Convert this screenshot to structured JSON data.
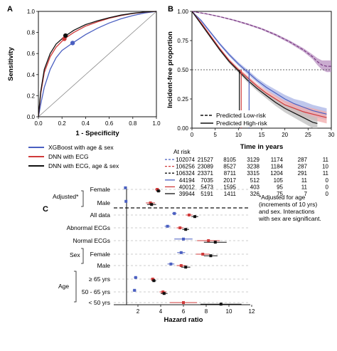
{
  "panels": {
    "a": "A",
    "b": "B",
    "c": "C"
  },
  "colors": {
    "xgb": "#4a5fc1",
    "dnn": "#d03a3a",
    "dnn_full": "#111111",
    "lowrisk": "#7a3b84",
    "lowrisk_band": "#b890c0",
    "blue_band": "#a9b4e6",
    "red_band": "#f2a9a9",
    "grey_band": "#bdbdbd"
  },
  "chart_data": [
    {
      "type": "line",
      "panel": "A",
      "xlabel": "1 - Specificity",
      "ylabel": "Sensitivity",
      "xlim": [
        0,
        1
      ],
      "ylim": [
        0,
        1
      ],
      "xticks": [
        "0.0",
        "0.2",
        "0.4",
        "0.6",
        "0.8",
        "1.0"
      ],
      "yticks": [
        "0.0",
        "0.2",
        "0.4",
        "0.6",
        "0.8",
        "1.0"
      ],
      "series": [
        {
          "name": "XGBoost with age & sex",
          "color_key": "xgb",
          "x": [
            0,
            0.02,
            0.05,
            0.1,
            0.15,
            0.2,
            0.29,
            0.4,
            0.5,
            0.6,
            0.7,
            0.8,
            0.9,
            1.0
          ],
          "y": [
            0,
            0.12,
            0.28,
            0.45,
            0.56,
            0.63,
            0.7,
            0.78,
            0.84,
            0.89,
            0.93,
            0.96,
            0.985,
            1.0
          ],
          "point": [
            0.29,
            0.7
          ]
        },
        {
          "name": "DNN with ECG",
          "color_key": "dnn",
          "x": [
            0,
            0.02,
            0.05,
            0.1,
            0.15,
            0.22,
            0.3,
            0.4,
            0.5,
            0.6,
            0.7,
            0.8,
            0.9,
            1.0
          ],
          "y": [
            0,
            0.22,
            0.42,
            0.57,
            0.66,
            0.74,
            0.8,
            0.86,
            0.9,
            0.935,
            0.96,
            0.98,
            0.993,
            1.0
          ],
          "point": [
            0.22,
            0.74
          ]
        },
        {
          "name": "DNN with ECG, age & sex",
          "color_key": "dnn_full",
          "x": [
            0,
            0.02,
            0.05,
            0.1,
            0.15,
            0.22,
            0.3,
            0.4,
            0.5,
            0.6,
            0.7,
            0.8,
            0.9,
            1.0
          ],
          "y": [
            0,
            0.24,
            0.45,
            0.6,
            0.69,
            0.76,
            0.82,
            0.875,
            0.91,
            0.94,
            0.965,
            0.982,
            0.994,
            1.0
          ],
          "point": [
            0.23,
            0.77
          ]
        }
      ],
      "reference_line": true
    },
    {
      "type": "line",
      "panel": "B",
      "xlabel": "Time in years",
      "ylabel": "Incident-free proportion",
      "xlim": [
        0,
        30
      ],
      "ylim": [
        0,
        1
      ],
      "xticks": [
        "0",
        "5",
        "10",
        "15",
        "20",
        "25",
        "30"
      ],
      "yticks": [
        "0.00",
        "0.25",
        "0.50",
        "0.75",
        "1.00"
      ],
      "median_line": 0.5,
      "legend": [
        "Predicted Low-risk",
        "Predicted High-risk"
      ],
      "series": [
        {
          "group": "low",
          "color_key": "lowrisk",
          "band_key": "lowrisk_band",
          "x": [
            0,
            3,
            6,
            9,
            12,
            15,
            18,
            21,
            24,
            26,
            27,
            28,
            29,
            30
          ],
          "y": [
            1.0,
            0.98,
            0.955,
            0.925,
            0.89,
            0.85,
            0.8,
            0.74,
            0.67,
            0.61,
            0.57,
            0.54,
            0.53,
            0.53
          ],
          "band": [
            0.005,
            0.005,
            0.005,
            0.006,
            0.007,
            0.008,
            0.01,
            0.012,
            0.015,
            0.02,
            0.03,
            0.04,
            0.05,
            0.05
          ]
        },
        {
          "group": "high",
          "color_key": "xgb",
          "band_key": "blue_band",
          "x": [
            0,
            2,
            4,
            6,
            8,
            10,
            12,
            14,
            16,
            18,
            20,
            22,
            24,
            26,
            28,
            29
          ],
          "y": [
            1.0,
            0.92,
            0.82,
            0.72,
            0.63,
            0.55,
            0.48,
            0.41,
            0.35,
            0.3,
            0.25,
            0.21,
            0.18,
            0.15,
            0.13,
            0.12
          ],
          "band": [
            0.005,
            0.01,
            0.01,
            0.012,
            0.014,
            0.016,
            0.02,
            0.02,
            0.025,
            0.03,
            0.035,
            0.04,
            0.05,
            0.05,
            0.05,
            0.05
          ]
        },
        {
          "group": "high",
          "color_key": "dnn",
          "band_key": "red_band",
          "x": [
            0,
            2,
            4,
            6,
            8,
            10,
            12,
            14,
            16,
            18,
            20,
            22,
            24,
            26,
            28,
            29
          ],
          "y": [
            1.0,
            0.9,
            0.79,
            0.68,
            0.58,
            0.5,
            0.43,
            0.36,
            0.3,
            0.25,
            0.2,
            0.17,
            0.14,
            0.12,
            0.1,
            0.09
          ],
          "band": [
            0.005,
            0.01,
            0.01,
            0.012,
            0.014,
            0.016,
            0.02,
            0.02,
            0.025,
            0.03,
            0.035,
            0.04,
            0.045,
            0.05,
            0.05,
            0.05
          ]
        },
        {
          "group": "high",
          "color_key": "dnn_full",
          "band_key": "grey_band",
          "x": [
            0,
            2,
            4,
            6,
            8,
            10,
            12,
            14,
            16,
            18,
            20,
            22,
            24,
            26,
            27
          ],
          "y": [
            1.0,
            0.89,
            0.78,
            0.67,
            0.57,
            0.49,
            0.41,
            0.34,
            0.28,
            0.22,
            0.17,
            0.13,
            0.09,
            0.05,
            0.04
          ],
          "band": [
            0.005,
            0.01,
            0.01,
            0.012,
            0.014,
            0.016,
            0.02,
            0.022,
            0.025,
            0.03,
            0.035,
            0.04,
            0.045,
            0.05,
            0.05
          ]
        }
      ],
      "medians": [
        {
          "color_key": "dnn_full",
          "x": 10.2
        },
        {
          "color_key": "dnn",
          "x": 10.6
        },
        {
          "color_key": "xgb",
          "x": 12.3
        }
      ]
    },
    {
      "type": "table",
      "title": "At risk",
      "rows": [
        {
          "style": "dashed",
          "color_key": "xgb",
          "values": [
            "102074",
            "21527",
            "8105",
            "3129",
            "1174",
            "287",
            "11"
          ]
        },
        {
          "style": "dashed",
          "color_key": "dnn",
          "values": [
            "106256",
            "23089",
            "8527",
            "3238",
            "1184",
            "287",
            "10"
          ]
        },
        {
          "style": "dashed",
          "color_key": "dnn_full",
          "values": [
            "106324",
            "23371",
            "8711",
            "3315",
            "1204",
            "291",
            "11"
          ]
        },
        {
          "style": "solid",
          "color_key": "xgb",
          "values": [
            "44194",
            "7035",
            "2017",
            "512",
            "105",
            "11",
            "0"
          ]
        },
        {
          "style": "solid",
          "color_key": "dnn",
          "values": [
            "40012",
            "5473",
            "1595",
            "403",
            "95",
            "11",
            "0"
          ]
        },
        {
          "style": "solid",
          "color_key": "dnn_full",
          "values": [
            "39944",
            "5191",
            "1411",
            "326",
            "75",
            "7",
            "0"
          ]
        }
      ]
    },
    {
      "type": "scatter",
      "panel": "C",
      "xlabel": "Hazard ratio",
      "xlim": [
        0,
        12
      ],
      "xticks": [
        "2",
        "4",
        "6",
        "8",
        "10",
        "12"
      ],
      "reference_x": 1,
      "categories": [
        "Female",
        "Male",
        "All data",
        "Abnormal ECGs",
        "Normal ECGs",
        "Female",
        "Male",
        "≥ 65 yrs",
        "50 - 65 yrs",
        "< 50 yrs"
      ],
      "series": [
        {
          "color_key": "xgb",
          "values": [
            0.9,
            0.95,
            5.2,
            4.6,
            6.0,
            5.8,
            4.9,
            1.8,
            1.7,
            null
          ]
        },
        {
          "color_key": "dnn",
          "values": [
            3.7,
            3.1,
            6.5,
            5.7,
            8.2,
            7.7,
            5.8,
            3.3,
            4.2,
            6.0
          ]
        },
        {
          "color_key": "dnn_full",
          "values": [
            3.8,
            3.2,
            7.0,
            6.2,
            8.8,
            8.4,
            6.2,
            3.4,
            4.3,
            9.3
          ]
        }
      ],
      "errors": [
        [
          0.05,
          0.05,
          0.2,
          0.25,
          0.8,
          0.35,
          0.3,
          0.15,
          0.15,
          null
        ],
        [
          0.2,
          0.4,
          0.3,
          0.3,
          1.0,
          0.6,
          0.4,
          0.2,
          0.3,
          1.2
        ],
        [
          0.2,
          0.4,
          0.3,
          0.3,
          1.0,
          0.6,
          0.4,
          0.2,
          0.3,
          1.8
        ]
      ]
    }
  ],
  "legend_a": [
    "XGBoost with age & sex",
    "DNN with ECG",
    "DNN with ECG, age & sex"
  ],
  "forest_labels": {
    "adjusted": "Adjusted*",
    "sex": "Sex",
    "age": "Age",
    "rows": [
      "Female",
      "Male",
      "All data",
      "Abnormal ECGs",
      "Normal ECGs",
      "Female",
      "Male",
      "≥ 65 yrs",
      "50 - 65 yrs",
      "< 50 yrs"
    ]
  },
  "footnote": [
    "*Adjusted for age",
    "(increments of 10 yrs)",
    "and sex. Interactions",
    "with sex are significant."
  ]
}
